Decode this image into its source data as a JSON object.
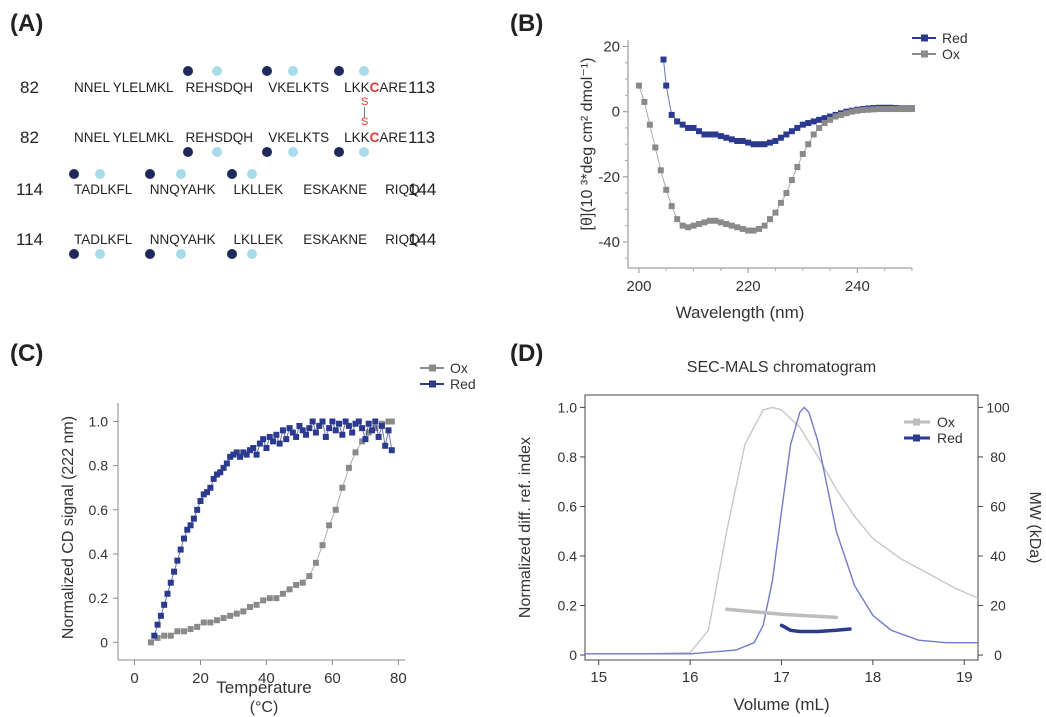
{
  "panels": {
    "A": {
      "letter": "(A)"
    },
    "B": {
      "letter": "(B)"
    },
    "C": {
      "letter": "(C)"
    },
    "D": {
      "letter": "(D)"
    }
  },
  "sequence": {
    "rows": [
      {
        "start": "82",
        "end": "113",
        "segments": [
          "NNEL",
          "YLELMKL",
          "REHSDQH",
          "VKELKTS",
          "LKK",
          "C",
          "ARE"
        ]
      },
      {
        "start": "82",
        "end": "113",
        "segments": [
          "NNEL",
          "YLELMKL",
          "REHSDQH",
          "VKELKTS",
          "LKK",
          "C",
          "ARE"
        ]
      },
      {
        "start": "114",
        "end": "144",
        "segments": [
          "TADLKFL",
          "NNQYAHK",
          "LKLLEK",
          "ESKAKNE",
          "RIQQ"
        ]
      },
      {
        "start": "114",
        "end": "144",
        "segments": [
          "TADLKFL",
          "NNQYAHK",
          "LKLLEK",
          "ESKAKNE",
          "RIQQ"
        ]
      }
    ],
    "disulfide": [
      "S",
      "|",
      "S"
    ],
    "highlight_color": "#e53935",
    "dot_colors": {
      "dark": "#1f2a5c",
      "light": "#a9dceb"
    }
  },
  "chart_data": [
    {
      "panel": "B",
      "type": "line",
      "xlabel": "Wavelength (nm)",
      "ylabel": "[θ](10 ³*deg cm² dmol⁻¹)",
      "xlim": [
        198,
        250
      ],
      "ylim": [
        -48,
        22
      ],
      "xticks": [
        200,
        220,
        240
      ],
      "yticks": [
        20,
        0,
        -20,
        -40
      ],
      "legend_position": "top-right",
      "series": [
        {
          "name": "Red",
          "color": "#2b3a8f",
          "x": [
            204.5,
            205,
            206,
            207,
            208,
            209,
            210,
            211,
            212,
            213,
            214,
            215,
            216,
            217,
            218,
            219,
            220,
            221,
            222,
            223,
            224,
            225,
            226,
            227,
            228,
            229,
            230,
            231,
            232,
            233,
            234,
            235,
            236,
            237,
            238,
            239,
            240,
            241,
            242,
            243,
            244,
            245,
            246,
            247,
            248,
            249,
            250
          ],
          "y": [
            16,
            8,
            -1,
            -3,
            -4,
            -5,
            -5,
            -6,
            -7,
            -7,
            -7,
            -7.5,
            -8,
            -8.5,
            -9,
            -9,
            -9.5,
            -10,
            -10,
            -10,
            -9.5,
            -9,
            -8,
            -7,
            -6,
            -5,
            -4,
            -3.5,
            -3,
            -2.5,
            -2,
            -1.5,
            -1,
            -0.5,
            0,
            0.3,
            0.6,
            0.8,
            1,
            1.1,
            1.2,
            1.2,
            1.2,
            1.1,
            1,
            1,
            1
          ]
        },
        {
          "name": "Ox",
          "color": "#8a8a8a",
          "x": [
            200,
            201,
            202,
            203,
            204,
            205,
            206,
            207,
            208,
            209,
            210,
            211,
            212,
            213,
            214,
            215,
            216,
            217,
            218,
            219,
            220,
            221,
            222,
            223,
            224,
            225,
            226,
            227,
            228,
            229,
            230,
            231,
            232,
            233,
            234,
            235,
            236,
            237,
            238,
            239,
            240,
            241,
            242,
            243,
            244,
            245,
            246,
            247,
            248,
            249,
            250
          ],
          "y": [
            8,
            3,
            -4,
            -11,
            -18,
            -24,
            -29,
            -33,
            -35,
            -35.5,
            -35,
            -34.5,
            -34,
            -33.5,
            -33.5,
            -34,
            -34.5,
            -35,
            -35.5,
            -36,
            -36.5,
            -36.5,
            -36,
            -35,
            -33,
            -31,
            -28,
            -25,
            -21,
            -17,
            -13,
            -10,
            -7,
            -5,
            -3.5,
            -2.5,
            -1.5,
            -1,
            -0.5,
            0,
            0.3,
            0.5,
            0.6,
            0.7,
            0.8,
            0.8,
            0.8,
            0.8,
            0.8,
            0.8,
            0.8
          ]
        }
      ]
    },
    {
      "panel": "C",
      "type": "line",
      "xlabel": "Temperature",
      "xlabel2": "(°C)",
      "ylabel": "Normalized CD signal (222 nm)",
      "xlim": [
        -5,
        82
      ],
      "ylim": [
        -0.08,
        1.12
      ],
      "xticks": [
        0,
        20,
        40,
        60,
        80
      ],
      "yticks": [
        0,
        0.2,
        0.4,
        0.6,
        0.8,
        1.0
      ],
      "ytick_labels": [
        "0",
        "0.2",
        "0.4",
        "0.6",
        "0.8",
        "1.0"
      ],
      "legend_position": "top-right",
      "series": [
        {
          "name": "Ox",
          "color": "#8a8a8a",
          "x": [
            5,
            7,
            9,
            11,
            13,
            15,
            17,
            19,
            21,
            23,
            25,
            27,
            29,
            31,
            33,
            35,
            37,
            39,
            41,
            43,
            45,
            47,
            49,
            51,
            53,
            55,
            57,
            59,
            61,
            63,
            65,
            67,
            69,
            71,
            73,
            75,
            77,
            78
          ],
          "y": [
            0,
            0.02,
            0.03,
            0.03,
            0.05,
            0.05,
            0.06,
            0.07,
            0.09,
            0.09,
            0.1,
            0.11,
            0.12,
            0.13,
            0.14,
            0.16,
            0.17,
            0.19,
            0.2,
            0.2,
            0.22,
            0.24,
            0.26,
            0.27,
            0.3,
            0.36,
            0.44,
            0.53,
            0.6,
            0.7,
            0.79,
            0.86,
            0.91,
            0.95,
            0.97,
            0.99,
            1.0,
            1.0
          ]
        },
        {
          "name": "Red",
          "color": "#2b3a8f",
          "x": [
            6,
            7,
            8,
            9,
            10,
            11,
            12,
            13,
            14,
            15,
            16,
            17,
            18,
            19,
            20,
            21,
            22,
            23,
            24,
            25,
            26,
            27,
            28,
            29,
            30,
            31,
            32,
            33,
            34,
            35,
            36,
            37,
            38,
            39,
            40,
            41,
            42,
            43,
            44,
            45,
            46,
            47,
            48,
            49,
            50,
            51,
            52,
            53,
            54,
            55,
            56,
            57,
            58,
            59,
            60,
            61,
            62,
            63,
            64,
            65,
            66,
            67,
            68,
            69,
            70,
            71,
            72,
            73,
            74,
            75,
            76,
            77,
            78
          ],
          "y": [
            0.03,
            0.08,
            0.12,
            0.17,
            0.22,
            0.27,
            0.32,
            0.37,
            0.42,
            0.47,
            0.51,
            0.53,
            0.56,
            0.6,
            0.64,
            0.67,
            0.68,
            0.7,
            0.74,
            0.76,
            0.77,
            0.79,
            0.81,
            0.84,
            0.85,
            0.86,
            0.84,
            0.86,
            0.85,
            0.87,
            0.88,
            0.85,
            0.9,
            0.92,
            0.88,
            0.93,
            0.91,
            0.94,
            0.9,
            0.96,
            0.92,
            0.97,
            0.95,
            0.93,
            0.98,
            0.96,
            0.94,
            0.97,
            1.0,
            0.95,
            0.98,
            1.0,
            0.93,
            0.97,
            1.0,
            0.96,
            0.99,
            0.94,
            1.0,
            0.98,
            0.95,
            0.99,
            1.0,
            0.97,
            0.92,
            0.99,
            0.96,
            1.0,
            0.93,
            0.98,
            0.89,
            0.96,
            0.87
          ]
        }
      ]
    },
    {
      "panel": "D",
      "type": "line",
      "title": "SEC-MALS chromatogram",
      "xlabel": "Volume (mL)",
      "ylabel": "Normalized diff. ref. index",
      "y2label": "MW (kDa)",
      "xlim": [
        14.85,
        19.15
      ],
      "ylim": [
        -0.02,
        1.05
      ],
      "y2lim": [
        -2,
        105
      ],
      "xticks": [
        15,
        16,
        17,
        18,
        19
      ],
      "yticks": [
        0,
        0.2,
        0.4,
        0.6,
        0.8,
        1.0
      ],
      "y2ticks": [
        0,
        20,
        40,
        60,
        80,
        100
      ],
      "legend_position": "top-right",
      "series": [
        {
          "name": "Ox",
          "color": "#c8c8c8",
          "x": [
            14.85,
            15.5,
            16.0,
            16.2,
            16.4,
            16.6,
            16.8,
            16.9,
            17.0,
            17.2,
            17.4,
            17.6,
            17.8,
            18.0,
            18.3,
            18.6,
            18.9,
            19.15
          ],
          "y": [
            0.005,
            0.005,
            0.01,
            0.1,
            0.5,
            0.85,
            0.99,
            1.0,
            0.99,
            0.92,
            0.8,
            0.67,
            0.56,
            0.47,
            0.39,
            0.33,
            0.27,
            0.23
          ]
        },
        {
          "name": "Red",
          "color": "#6f7cc8",
          "x": [
            14.85,
            15.5,
            16.0,
            16.5,
            16.7,
            16.8,
            16.9,
            17.0,
            17.1,
            17.2,
            17.25,
            17.3,
            17.4,
            17.5,
            17.6,
            17.8,
            18.0,
            18.2,
            18.5,
            18.8,
            19.15
          ],
          "y": [
            0.005,
            0.005,
            0.005,
            0.02,
            0.05,
            0.12,
            0.3,
            0.58,
            0.85,
            0.98,
            1.0,
            0.98,
            0.86,
            0.68,
            0.5,
            0.28,
            0.16,
            0.1,
            0.06,
            0.05,
            0.05
          ]
        }
      ],
      "mw_series": [
        {
          "name": "Ox",
          "color": "#bdbdbd",
          "x": [
            16.4,
            16.7,
            17.0,
            17.3,
            17.6
          ],
          "y": [
            18.5,
            17.5,
            16.5,
            15.8,
            15.2
          ]
        },
        {
          "name": "Red",
          "color": "#2b3a8f",
          "x": [
            17.0,
            17.05,
            17.1,
            17.2,
            17.4,
            17.6,
            17.75
          ],
          "y": [
            12,
            11,
            10,
            9.5,
            9.5,
            10,
            10.5
          ]
        }
      ]
    }
  ]
}
